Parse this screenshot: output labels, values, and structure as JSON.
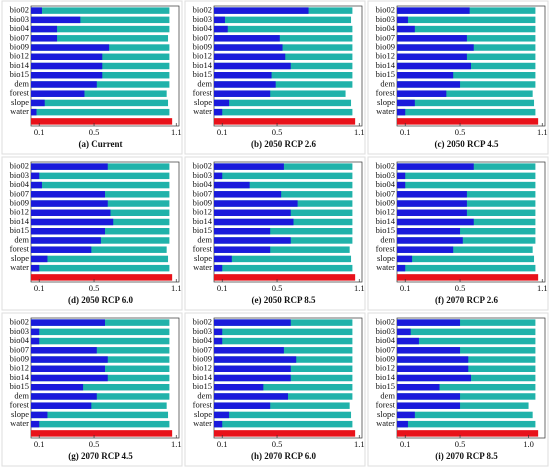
{
  "chart_data": [
    {
      "type": "bar",
      "horizontal": true,
      "title": "(a) Current",
      "categories": [
        "bio02",
        "bio03",
        "bio04",
        "bio07",
        "bio09",
        "bio12",
        "bio14",
        "bio15",
        "dem",
        "forest",
        "slope",
        "water",
        null
      ],
      "series": [
        {
          "color": "#20b2aa",
          "values": [
            1.05,
            1.05,
            1.05,
            1.04,
            1.05,
            1.05,
            1.05,
            1.05,
            1.05,
            1.03,
            1.04,
            1.05,
            null
          ]
        },
        {
          "color": "#1a1adb",
          "values": [
            0.12,
            0.4,
            0.23,
            0.23,
            0.61,
            0.56,
            0.56,
            0.56,
            0.52,
            0.43,
            0.14,
            0.08,
            null
          ]
        },
        {
          "color": "#e8121a",
          "values": [
            null,
            null,
            null,
            null,
            null,
            null,
            null,
            null,
            null,
            null,
            null,
            null,
            1.07
          ]
        }
      ],
      "xlim": [
        0.04,
        1.12
      ],
      "xticks": [
        0.1,
        0.5,
        1.1
      ]
    },
    {
      "type": "bar",
      "horizontal": true,
      "title": "(b) 2050 RCP 2.6",
      "categories": [
        "bio02",
        "bio03",
        "bio04",
        "bio07",
        "bio09",
        "bio12",
        "bio14",
        "bio15",
        "dem",
        "forest",
        "slope",
        "water",
        null
      ],
      "series": [
        {
          "color": "#20b2aa",
          "values": [
            1.05,
            1.04,
            1.05,
            1.05,
            1.05,
            1.05,
            1.05,
            1.05,
            1.05,
            1.0,
            1.04,
            1.05,
            null
          ]
        },
        {
          "color": "#1a1adb",
          "values": [
            0.73,
            0.12,
            0.14,
            0.52,
            0.54,
            0.56,
            0.6,
            0.46,
            0.49,
            0.45,
            0.15,
            0.1,
            null
          ]
        },
        {
          "color": "#e8121a",
          "values": [
            null,
            null,
            null,
            null,
            null,
            null,
            null,
            null,
            null,
            null,
            null,
            null,
            1.07
          ]
        }
      ],
      "xlim": [
        0.04,
        1.12
      ],
      "xticks": [
        0.1,
        0.5,
        1.1
      ]
    },
    {
      "type": "bar",
      "horizontal": true,
      "title": "(c) 2050 RCP 4.5",
      "categories": [
        "bio02",
        "bio03",
        "bio04",
        "bio07",
        "bio09",
        "bio12",
        "bio14",
        "bio15",
        "dem",
        "forest",
        "slope",
        "water",
        null
      ],
      "series": [
        {
          "color": "#20b2aa",
          "values": [
            1.05,
            1.05,
            1.05,
            1.05,
            1.05,
            1.05,
            1.05,
            1.05,
            1.05,
            1.03,
            1.04,
            1.05,
            null
          ]
        },
        {
          "color": "#1a1adb",
          "values": [
            0.57,
            0.12,
            0.17,
            0.55,
            0.6,
            0.55,
            0.58,
            0.45,
            0.5,
            0.4,
            0.17,
            0.1,
            null
          ]
        },
        {
          "color": "#e8121a",
          "values": [
            null,
            null,
            null,
            null,
            null,
            null,
            null,
            null,
            null,
            null,
            null,
            null,
            1.07
          ]
        }
      ],
      "xlim": [
        0.04,
        1.12
      ],
      "xticks": [
        0.1,
        0.5,
        1.1
      ]
    },
    {
      "type": "bar",
      "horizontal": true,
      "title": "(d) 2050 RCP 6.0",
      "categories": [
        "bio02",
        "bio03",
        "bio04",
        "bio07",
        "bio09",
        "bio12",
        "bio14",
        "bio15",
        "dem",
        "forest",
        "slope",
        "water",
        null
      ],
      "series": [
        {
          "color": "#20b2aa",
          "values": [
            1.05,
            1.05,
            1.05,
            1.05,
            1.05,
            1.05,
            1.05,
            1.05,
            1.05,
            1.03,
            1.04,
            1.05,
            null
          ]
        },
        {
          "color": "#1a1adb",
          "values": [
            0.6,
            0.1,
            0.12,
            0.58,
            0.6,
            0.62,
            0.64,
            0.58,
            0.55,
            0.48,
            0.16,
            0.1,
            null
          ]
        },
        {
          "color": "#e8121a",
          "values": [
            null,
            null,
            null,
            null,
            null,
            null,
            null,
            null,
            null,
            null,
            null,
            null,
            1.07
          ]
        }
      ],
      "xlim": [
        0.04,
        1.12
      ],
      "xticks": [
        0.1,
        0.5,
        1.1
      ]
    },
    {
      "type": "bar",
      "horizontal": true,
      "title": "(e) 2050 RCP 8.5",
      "categories": [
        "bio02",
        "bio03",
        "bio04",
        "bio07",
        "bio09",
        "bio12",
        "bio14",
        "bio15",
        "dem",
        "forest",
        "slope",
        "water",
        null
      ],
      "series": [
        {
          "color": "#20b2aa",
          "values": [
            1.05,
            1.05,
            1.05,
            1.05,
            1.05,
            1.05,
            1.05,
            1.05,
            1.05,
            1.03,
            1.04,
            1.05,
            null
          ]
        },
        {
          "color": "#1a1adb",
          "values": [
            0.55,
            0.1,
            0.3,
            0.53,
            0.65,
            0.6,
            0.62,
            0.45,
            0.6,
            0.45,
            0.17,
            0.1,
            null
          ]
        },
        {
          "color": "#e8121a",
          "values": [
            null,
            null,
            null,
            null,
            null,
            null,
            null,
            null,
            null,
            null,
            null,
            null,
            1.07
          ]
        }
      ],
      "xlim": [
        0.04,
        1.12
      ],
      "xticks": [
        0.1,
        0.5,
        1.1
      ]
    },
    {
      "type": "bar",
      "horizontal": true,
      "title": "(f) 2070 RCP 2.6",
      "categories": [
        "bio02",
        "bio03",
        "bio04",
        "bio07",
        "bio09",
        "bio12",
        "bio14",
        "bio15",
        "dem",
        "forest",
        "slope",
        "water",
        null
      ],
      "series": [
        {
          "color": "#20b2aa",
          "values": [
            1.05,
            1.05,
            1.05,
            1.05,
            1.05,
            1.05,
            1.05,
            1.05,
            1.05,
            1.03,
            1.04,
            1.05,
            null
          ]
        },
        {
          "color": "#1a1adb",
          "values": [
            0.6,
            0.1,
            0.1,
            0.55,
            0.55,
            0.55,
            0.6,
            0.5,
            0.52,
            0.45,
            0.15,
            0.1,
            null
          ]
        },
        {
          "color": "#e8121a",
          "values": [
            null,
            null,
            null,
            null,
            null,
            null,
            null,
            null,
            null,
            null,
            null,
            null,
            1.07
          ]
        }
      ],
      "xlim": [
        0.04,
        1.12
      ],
      "xticks": [
        0.1,
        0.5,
        1.1
      ]
    },
    {
      "type": "bar",
      "horizontal": true,
      "title": "(g) 2070 RCP 4.5",
      "categories": [
        "bio02",
        "bio03",
        "bio04",
        "bio07",
        "bio09",
        "bio12",
        "bio14",
        "bio15",
        "dem",
        "forest",
        "slope",
        "water",
        null
      ],
      "series": [
        {
          "color": "#20b2aa",
          "values": [
            1.05,
            1.05,
            1.05,
            1.05,
            1.05,
            1.05,
            1.05,
            1.05,
            1.05,
            1.03,
            1.04,
            1.05,
            null
          ]
        },
        {
          "color": "#1a1adb",
          "values": [
            0.58,
            0.1,
            0.1,
            0.52,
            0.6,
            0.58,
            0.6,
            0.42,
            0.52,
            0.48,
            0.16,
            0.1,
            null
          ]
        },
        {
          "color": "#e8121a",
          "values": [
            null,
            null,
            null,
            null,
            null,
            null,
            null,
            null,
            null,
            null,
            null,
            null,
            1.07
          ]
        }
      ],
      "xlim": [
        0.04,
        1.12
      ],
      "xticks": [
        0.1,
        0.5,
        1.1
      ]
    },
    {
      "type": "bar",
      "horizontal": true,
      "title": "(h) 2070 RCP 6.0",
      "categories": [
        "bio02",
        "bio03",
        "bio04",
        "bio07",
        "bio09",
        "bio12",
        "bio14",
        "bio15",
        "dem",
        "forest",
        "slope",
        "water",
        null
      ],
      "series": [
        {
          "color": "#20b2aa",
          "values": [
            1.05,
            1.05,
            1.05,
            1.05,
            1.05,
            1.05,
            1.05,
            1.05,
            1.05,
            1.03,
            1.04,
            1.05,
            null
          ]
        },
        {
          "color": "#1a1adb",
          "values": [
            0.6,
            0.1,
            0.1,
            0.55,
            0.64,
            0.6,
            0.6,
            0.4,
            0.58,
            0.45,
            0.15,
            0.1,
            null
          ]
        },
        {
          "color": "#e8121a",
          "values": [
            null,
            null,
            null,
            null,
            null,
            null,
            null,
            null,
            null,
            null,
            null,
            null,
            1.07
          ]
        }
      ],
      "xlim": [
        0.04,
        1.12
      ],
      "xticks": [
        0.1,
        0.5,
        1.1
      ]
    },
    {
      "type": "bar",
      "horizontal": true,
      "title": "(i) 2070 RCP 8.5",
      "categories": [
        "bio02",
        "bio03",
        "bio04",
        "bio07",
        "bio09",
        "bio12",
        "bio14",
        "bio15",
        "dem",
        "forest",
        "slope",
        "water",
        null
      ],
      "series": [
        {
          "color": "#20b2aa",
          "values": [
            1.05,
            1.05,
            1.05,
            1.05,
            1.05,
            1.05,
            1.05,
            1.05,
            1.05,
            1.0,
            1.03,
            1.05,
            null
          ]
        },
        {
          "color": "#1a1adb",
          "values": [
            0.5,
            0.14,
            0.2,
            0.5,
            0.56,
            0.56,
            0.58,
            0.35,
            0.5,
            0.5,
            0.17,
            0.12,
            null
          ]
        },
        {
          "color": "#e8121a",
          "values": [
            null,
            null,
            null,
            null,
            null,
            null,
            null,
            null,
            null,
            null,
            null,
            null,
            1.07
          ]
        }
      ],
      "xlim": [
        0.04,
        1.12
      ],
      "xticks": [
        0.1,
        0.5,
        {
          "value": 1,
          "label": "1.0"
        }
      ]
    }
  ]
}
